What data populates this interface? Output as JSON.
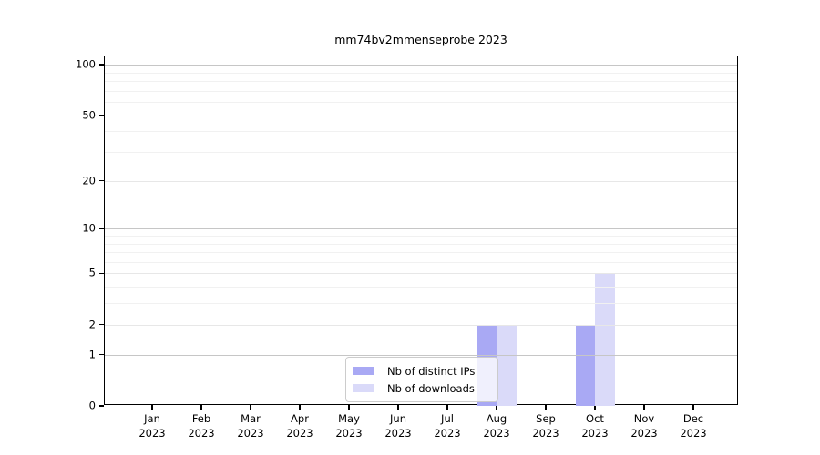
{
  "title": "mm74bv2mmenseprobe 2023",
  "chart_data": {
    "type": "bar",
    "title": "mm74bv2mmenseprobe 2023",
    "xlabel": "",
    "ylabel": "",
    "y_scale": "log1p",
    "categories": [
      "Jan 2023",
      "Feb 2023",
      "Mar 2023",
      "Apr 2023",
      "May 2023",
      "Jun 2023",
      "Jul 2023",
      "Aug 2023",
      "Sep 2023",
      "Oct 2023",
      "Nov 2023",
      "Dec 2023"
    ],
    "series": [
      {
        "name": "Nb of distinct IPs",
        "color": "#a9a9f4",
        "values": [
          0,
          0,
          0,
          0,
          0,
          0,
          0,
          2,
          0,
          2,
          0,
          0
        ]
      },
      {
        "name": "Nb of downloads",
        "color": "#dadaf9",
        "values": [
          0,
          0,
          0,
          0,
          0,
          0,
          0,
          2,
          0,
          5,
          0,
          0
        ]
      }
    ],
    "yticks": [
      0,
      1,
      2,
      5,
      10,
      20,
      50,
      100
    ],
    "ylim": [
      0,
      112
    ],
    "emphasized_gridlines": [
      1,
      10,
      100
    ],
    "minor_gridlines": [
      3,
      4,
      6,
      7,
      8,
      9,
      30,
      40,
      60,
      70,
      80,
      90
    ],
    "grid": true,
    "legend_position": "lower center inside"
  },
  "colors": {
    "background": "#ffffff",
    "axis": "#000000",
    "text": "#000000",
    "grid_emphasized": "#c6c6c6",
    "grid_major": "#e7e7e7",
    "grid_minor": "#f1f1f1",
    "legend_border": "#cccccc",
    "legend_background": "#ffffff"
  }
}
